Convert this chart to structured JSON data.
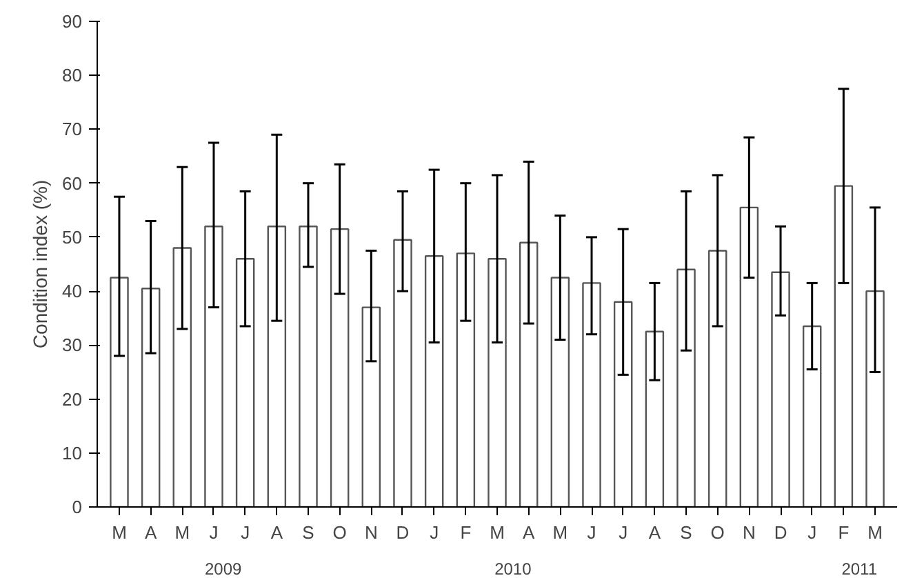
{
  "chart_data": {
    "type": "bar",
    "ylabel": "Condition index (%)",
    "categories": [
      "M",
      "A",
      "M",
      "J",
      "J",
      "A",
      "S",
      "O",
      "N",
      "D",
      "J",
      "F",
      "M",
      "A",
      "M",
      "J",
      "J",
      "A",
      "S",
      "O",
      "N",
      "D",
      "J",
      "F",
      "M"
    ],
    "values": [
      42.5,
      40.5,
      48,
      52,
      46,
      52,
      52,
      51.5,
      37,
      49.5,
      46.5,
      47,
      46,
      49,
      42.5,
      41.5,
      38,
      32.5,
      44,
      47.5,
      55.5,
      43.5,
      33.5,
      59.5,
      40
    ],
    "errors": [
      [
        28,
        57.5
      ],
      [
        28.5,
        53
      ],
      [
        33,
        63
      ],
      [
        37,
        67.5
      ],
      [
        33.5,
        58.5
      ],
      [
        34.5,
        69
      ],
      [
        44.5,
        60
      ],
      [
        39.5,
        63.5
      ],
      [
        27,
        47.5
      ],
      [
        40,
        58.5
      ],
      [
        30.5,
        62.5
      ],
      [
        34.5,
        60
      ],
      [
        30.5,
        61.5
      ],
      [
        34,
        64
      ],
      [
        31,
        54
      ],
      [
        32,
        50
      ],
      [
        24.5,
        51.5
      ],
      [
        23.5,
        41.5
      ],
      [
        29,
        58.5
      ],
      [
        33.5,
        61.5
      ],
      [
        42.5,
        68.5
      ],
      [
        35.5,
        52
      ],
      [
        25.5,
        41.5
      ],
      [
        41.5,
        77.5
      ],
      [
        25,
        55.5
      ]
    ],
    "color": "#ffffff",
    "ylim": [
      0,
      90
    ],
    "yticks": [
      0,
      10,
      20,
      30,
      40,
      50,
      60,
      70,
      80,
      90
    ],
    "grid": false,
    "annotations": [
      "2009",
      "2010",
      "2011"
    ]
  }
}
